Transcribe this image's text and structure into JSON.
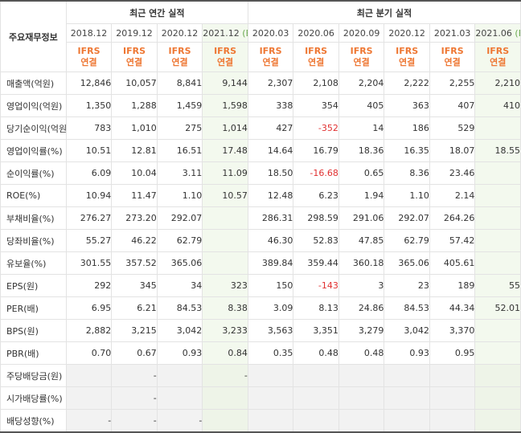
{
  "header": {
    "corner_label": "주요재무정보",
    "annual_group": "최근 연간 실적",
    "quarter_group": "최근 분기 실적",
    "periods": [
      "2018.12",
      "2019.12",
      "2020.12",
      "2021.12",
      "2020.03",
      "2020.06",
      "2020.09",
      "2020.12",
      "2021.03",
      "2021.06"
    ],
    "estimate_suffix": "(E)",
    "ifrs_top": "IFRS",
    "ifrs_bottom": "연결"
  },
  "rows": [
    {
      "label": "매출액(억원)",
      "values": [
        "12,846",
        "10,057",
        "8,841",
        "9,144",
        "2,307",
        "2,108",
        "2,204",
        "2,222",
        "2,255",
        "2,210"
      ]
    },
    {
      "label": "영업이익(억원)",
      "values": [
        "1,350",
        "1,288",
        "1,459",
        "1,598",
        "338",
        "354",
        "405",
        "363",
        "407",
        "410"
      ]
    },
    {
      "label": "당기순이익(억원)",
      "values": [
        "783",
        "1,010",
        "275",
        "1,014",
        "427",
        "-352",
        "14",
        "186",
        "529",
        ""
      ]
    },
    {
      "label": "영업이익률(%)",
      "values": [
        "10.51",
        "12.81",
        "16.51",
        "17.48",
        "14.64",
        "16.79",
        "18.36",
        "16.35",
        "18.07",
        "18.55"
      ]
    },
    {
      "label": "순이익률(%)",
      "values": [
        "6.09",
        "10.04",
        "3.11",
        "11.09",
        "18.50",
        "-16.68",
        "0.65",
        "8.36",
        "23.46",
        ""
      ]
    },
    {
      "label": "ROE(%)",
      "values": [
        "10.94",
        "11.47",
        "1.10",
        "10.57",
        "12.48",
        "6.23",
        "1.94",
        "1.10",
        "2.14",
        ""
      ]
    },
    {
      "label": "부채비율(%)",
      "values": [
        "276.27",
        "273.20",
        "292.07",
        "",
        "286.31",
        "298.59",
        "291.06",
        "292.07",
        "264.26",
        ""
      ]
    },
    {
      "label": "당좌비율(%)",
      "values": [
        "55.27",
        "46.22",
        "62.79",
        "",
        "46.30",
        "52.83",
        "47.85",
        "62.79",
        "57.42",
        ""
      ]
    },
    {
      "label": "유보율(%)",
      "values": [
        "301.55",
        "357.52",
        "365.06",
        "",
        "389.84",
        "359.44",
        "360.18",
        "365.06",
        "405.61",
        ""
      ]
    },
    {
      "label": "EPS(원)",
      "values": [
        "292",
        "345",
        "34",
        "323",
        "150",
        "-143",
        "3",
        "23",
        "189",
        "55"
      ]
    },
    {
      "label": "PER(배)",
      "values": [
        "6.95",
        "6.21",
        "84.53",
        "8.38",
        "3.09",
        "8.13",
        "24.86",
        "84.53",
        "44.34",
        "52.01"
      ]
    },
    {
      "label": "BPS(원)",
      "values": [
        "2,882",
        "3,215",
        "3,042",
        "3,233",
        "3,563",
        "3,351",
        "3,279",
        "3,042",
        "3,370",
        ""
      ]
    },
    {
      "label": "PBR(배)",
      "values": [
        "0.70",
        "0.67",
        "0.93",
        "0.84",
        "0.35",
        "0.48",
        "0.48",
        "0.93",
        "0.95",
        ""
      ]
    },
    {
      "label": "주당배당금(원)",
      "values": [
        "",
        "-",
        "",
        "-",
        "",
        "",
        "",
        "",
        "",
        ""
      ]
    },
    {
      "label": "시가배당률(%)",
      "values": [
        "",
        "-",
        "",
        "",
        "",
        "",
        "",
        "",
        "",
        ""
      ]
    },
    {
      "label": "배당성향(%)",
      "values": [
        "-",
        "-",
        "-",
        "",
        "",
        "",
        "",
        "",
        "",
        ""
      ]
    }
  ],
  "colors": {
    "ifrs": "#ee7733",
    "estimate_bg": "#f3f9ee",
    "estimate_mark": "#6aa84f",
    "negative": "#e03030"
  }
}
